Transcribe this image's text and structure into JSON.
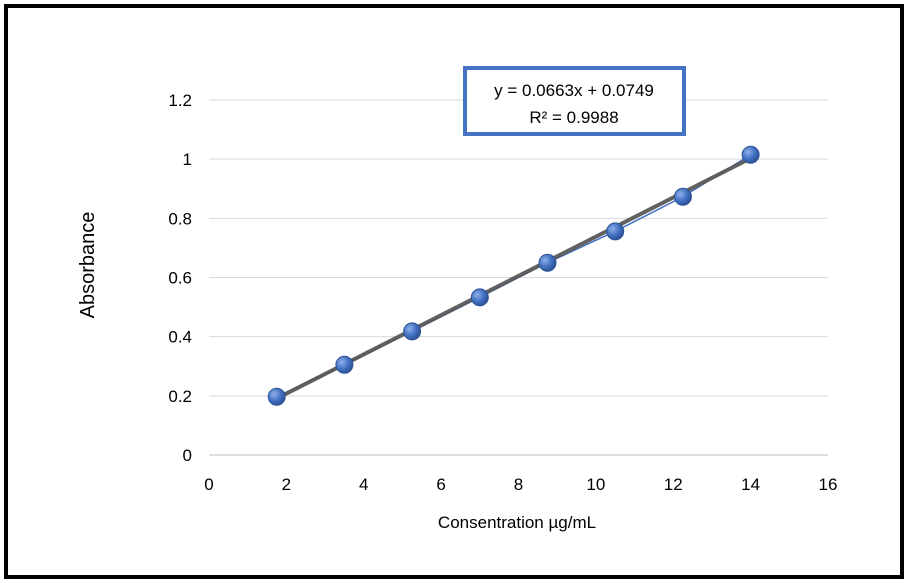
{
  "chart_data": {
    "type": "scatter",
    "title": "",
    "xlabel": "Consentration µg/mL",
    "ylabel": "Absorbance",
    "xlim": [
      0,
      16
    ],
    "ylim": [
      0,
      1.2
    ],
    "xticks": [
      "0",
      "2",
      "4",
      "6",
      "8",
      "10",
      "12",
      "14",
      "16"
    ],
    "yticks": [
      "0",
      "0.2",
      "0.4",
      "0.6",
      "0.8",
      "1",
      "1.2"
    ],
    "grid": "horizontal",
    "legend": "none",
    "series": [
      {
        "x": [
          1.75,
          3.5,
          5.25,
          7.0,
          8.75,
          10.5,
          12.25,
          14.0
        ],
        "y": [
          0.197,
          0.305,
          0.418,
          0.533,
          0.65,
          0.756,
          0.873,
          1.015
        ],
        "marker_color": "#4472C4",
        "line_color": "#4472C4"
      }
    ],
    "trendline": {
      "type": "linear",
      "slope": 0.0663,
      "intercept": 0.0749,
      "color": "#595959",
      "equation": "y = 0.0663x + 0.0749",
      "r_squared": "R² = 0.9988",
      "box_border_color": "#4472C4"
    }
  }
}
